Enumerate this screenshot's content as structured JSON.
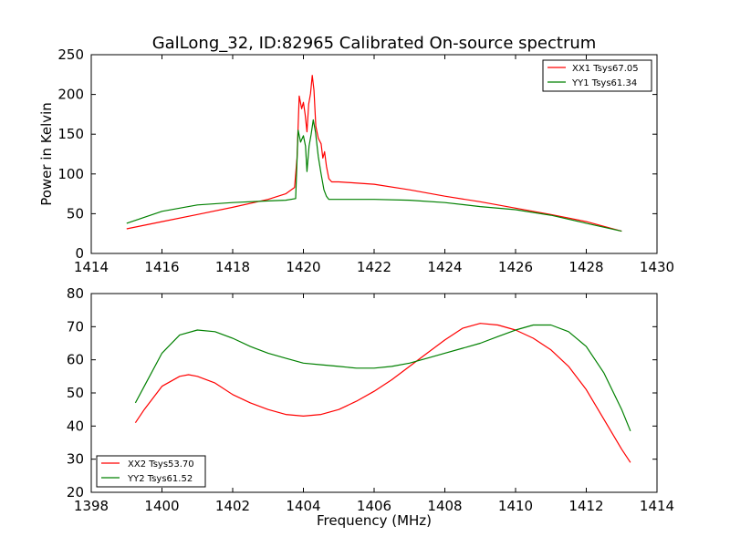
{
  "figure": {
    "title": "GalLong_32, ID:82965 Calibrated On-source spectrum"
  },
  "chart_data": [
    {
      "type": "line",
      "title": "GalLong_32, ID:82965 Calibrated On-source spectrum",
      "xlabel": "",
      "ylabel": "Power in Kelvin",
      "xlim": [
        1414,
        1430
      ],
      "ylim": [
        0,
        250
      ],
      "xticks": [
        1414,
        1416,
        1418,
        1420,
        1422,
        1424,
        1426,
        1428,
        1430
      ],
      "yticks": [
        0,
        50,
        100,
        150,
        200,
        250
      ],
      "legend_position": "top-right",
      "series": [
        {
          "name": "XX1 Tsys67.05",
          "color": "#ff0000",
          "points": [
            [
              1415.0,
              31
            ],
            [
              1416.0,
              40
            ],
            [
              1417.0,
              49
            ],
            [
              1418.0,
              58
            ],
            [
              1419.0,
              68
            ],
            [
              1419.5,
              75
            ],
            [
              1419.75,
              83
            ],
            [
              1419.82,
              120
            ],
            [
              1419.88,
              198
            ],
            [
              1419.95,
              182
            ],
            [
              1420.0,
              190
            ],
            [
              1420.05,
              175
            ],
            [
              1420.1,
              153
            ],
            [
              1420.15,
              188
            ],
            [
              1420.2,
              201
            ],
            [
              1420.25,
              224
            ],
            [
              1420.3,
              205
            ],
            [
              1420.35,
              160
            ],
            [
              1420.42,
              145
            ],
            [
              1420.5,
              138
            ],
            [
              1420.55,
              120
            ],
            [
              1420.6,
              128
            ],
            [
              1420.65,
              110
            ],
            [
              1420.72,
              94
            ],
            [
              1420.8,
              90
            ],
            [
              1421.0,
              90
            ],
            [
              1422.0,
              87
            ],
            [
              1423.0,
              80
            ],
            [
              1424.0,
              72
            ],
            [
              1425.0,
              65
            ],
            [
              1426.0,
              57
            ],
            [
              1427.0,
              49
            ],
            [
              1428.0,
              40
            ],
            [
              1429.0,
              28
            ]
          ]
        },
        {
          "name": "YY1 Tsys61.34",
          "color": "#008000",
          "points": [
            [
              1415.0,
              38
            ],
            [
              1416.0,
              53
            ],
            [
              1417.0,
              61
            ],
            [
              1418.0,
              64
            ],
            [
              1419.0,
              66
            ],
            [
              1419.5,
              67
            ],
            [
              1419.78,
              69
            ],
            [
              1419.85,
              155
            ],
            [
              1419.92,
              140
            ],
            [
              1420.0,
              148
            ],
            [
              1420.06,
              135
            ],
            [
              1420.1,
              103
            ],
            [
              1420.16,
              135
            ],
            [
              1420.22,
              150
            ],
            [
              1420.28,
              168
            ],
            [
              1420.34,
              153
            ],
            [
              1420.42,
              122
            ],
            [
              1420.5,
              100
            ],
            [
              1420.58,
              80
            ],
            [
              1420.65,
              72
            ],
            [
              1420.72,
              68
            ],
            [
              1421.0,
              68
            ],
            [
              1422.0,
              68
            ],
            [
              1423.0,
              67
            ],
            [
              1424.0,
              64
            ],
            [
              1425.0,
              59
            ],
            [
              1426.0,
              55
            ],
            [
              1427.0,
              48
            ],
            [
              1428.0,
              38
            ],
            [
              1429.0,
              28
            ]
          ]
        }
      ]
    },
    {
      "type": "line",
      "title": "",
      "xlabel": "Frequency (MHz)",
      "ylabel": "",
      "xlim": [
        1398,
        1414
      ],
      "ylim": [
        20,
        80
      ],
      "xticks": [
        1398,
        1400,
        1402,
        1404,
        1406,
        1408,
        1410,
        1412,
        1414
      ],
      "yticks": [
        20,
        30,
        40,
        50,
        60,
        70,
        80
      ],
      "legend_position": "bottom-left",
      "series": [
        {
          "name": "XX2 Tsys53.70",
          "color": "#ff0000",
          "points": [
            [
              1399.25,
              41
            ],
            [
              1399.5,
              45
            ],
            [
              1400.0,
              52
            ],
            [
              1400.5,
              55
            ],
            [
              1400.75,
              55.5
            ],
            [
              1401.0,
              55
            ],
            [
              1401.5,
              53
            ],
            [
              1402.0,
              49.5
            ],
            [
              1402.5,
              47
            ],
            [
              1403.0,
              45
            ],
            [
              1403.5,
              43.5
            ],
            [
              1404.0,
              43
            ],
            [
              1404.5,
              43.5
            ],
            [
              1405.0,
              45
            ],
            [
              1405.5,
              47.5
            ],
            [
              1406.0,
              50.5
            ],
            [
              1406.5,
              54
            ],
            [
              1407.0,
              58
            ],
            [
              1407.5,
              62
            ],
            [
              1408.0,
              66
            ],
            [
              1408.5,
              69.5
            ],
            [
              1409.0,
              71
            ],
            [
              1409.5,
              70.5
            ],
            [
              1410.0,
              69
            ],
            [
              1410.5,
              66.5
            ],
            [
              1411.0,
              63
            ],
            [
              1411.5,
              58
            ],
            [
              1412.0,
              51
            ],
            [
              1412.5,
              42
            ],
            [
              1413.0,
              33
            ],
            [
              1413.25,
              29
            ]
          ]
        },
        {
          "name": "YY2 Tsys61.52",
          "color": "#008000",
          "points": [
            [
              1399.25,
              47
            ],
            [
              1399.5,
              52
            ],
            [
              1400.0,
              62
            ],
            [
              1400.5,
              67.5
            ],
            [
              1401.0,
              69
            ],
            [
              1401.5,
              68.5
            ],
            [
              1402.0,
              66.5
            ],
            [
              1402.5,
              64
            ],
            [
              1403.0,
              62
            ],
            [
              1403.5,
              60.5
            ],
            [
              1404.0,
              59
            ],
            [
              1404.5,
              58.5
            ],
            [
              1405.0,
              58
            ],
            [
              1405.5,
              57.5
            ],
            [
              1406.0,
              57.5
            ],
            [
              1406.5,
              58
            ],
            [
              1407.0,
              59
            ],
            [
              1407.5,
              60.5
            ],
            [
              1408.0,
              62
            ],
            [
              1408.5,
              63.5
            ],
            [
              1409.0,
              65
            ],
            [
              1409.5,
              67
            ],
            [
              1410.0,
              69
            ],
            [
              1410.5,
              70.5
            ],
            [
              1411.0,
              70.5
            ],
            [
              1411.5,
              68.5
            ],
            [
              1412.0,
              64
            ],
            [
              1412.5,
              56
            ],
            [
              1413.0,
              45
            ],
            [
              1413.25,
              38.5
            ]
          ]
        }
      ]
    }
  ]
}
